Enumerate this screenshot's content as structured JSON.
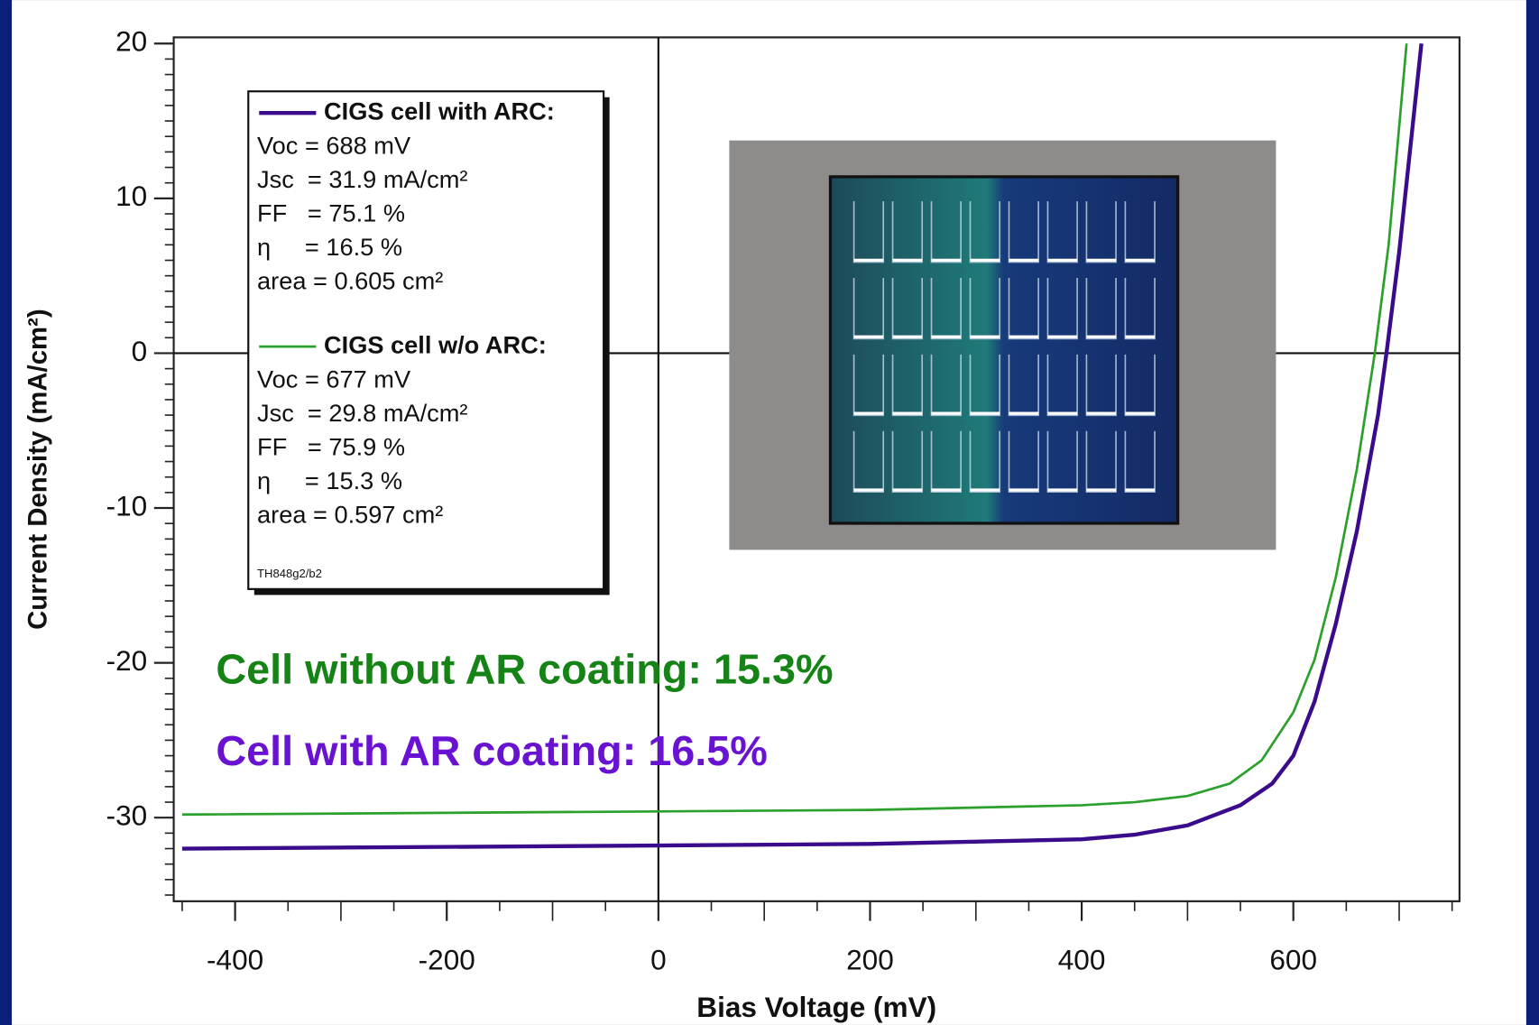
{
  "chart_data": {
    "type": "line",
    "x_label": "Bias Voltage  (mV)",
    "y_label": "Current Density  (mA/cm²)",
    "xlim": [
      -458,
      757
    ],
    "ylim": [
      -35.4,
      20.4
    ],
    "xticks": [
      -400,
      -200,
      0,
      200,
      400,
      600
    ],
    "yticks": [
      -30,
      -20,
      -10,
      0,
      10,
      20
    ],
    "series": [
      {
        "name": "CIGS cell with ARC:",
        "color": "#3a0c8c",
        "stats": [
          "Voc = 688 mV",
          "Jsc  = 31.9 mA/cm²",
          "FF   = 75.1 %",
          "η     = 16.5 %",
          "area = 0.605 cm²"
        ],
        "x": [
          -450,
          0,
          200,
          400,
          450,
          500,
          550,
          580,
          600,
          620,
          640,
          660,
          680,
          688,
          700,
          721
        ],
        "values": [
          -32.0,
          -31.8,
          -31.7,
          -31.4,
          -31.1,
          -30.5,
          -29.2,
          -27.8,
          -26.0,
          -22.5,
          -17.5,
          -11.5,
          -4.0,
          0,
          6.5,
          20
        ]
      },
      {
        "name": "CIGS cell w/o ARC:",
        "color": "#2ca02c",
        "stats": [
          "Voc = 677 mV",
          "Jsc  = 29.8 mA/cm²",
          "FF   = 75.9 %",
          "η     = 15.3 %",
          "area = 0.597 cm²"
        ],
        "x": [
          -450,
          0,
          200,
          400,
          450,
          500,
          540,
          570,
          600,
          620,
          640,
          660,
          677,
          690,
          707
        ],
        "values": [
          -29.8,
          -29.6,
          -29.5,
          -29.2,
          -29.0,
          -28.6,
          -27.8,
          -26.3,
          -23.2,
          -19.8,
          -14.5,
          -7.5,
          0,
          7.0,
          20
        ]
      }
    ],
    "footnote": "TH848g2/b2",
    "annotations": [
      {
        "text": "Cell without AR coating: 15.3%",
        "color": "#158315"
      },
      {
        "text": "Cell with AR coating: 16.5%",
        "color": "#6a12d2"
      }
    ]
  }
}
